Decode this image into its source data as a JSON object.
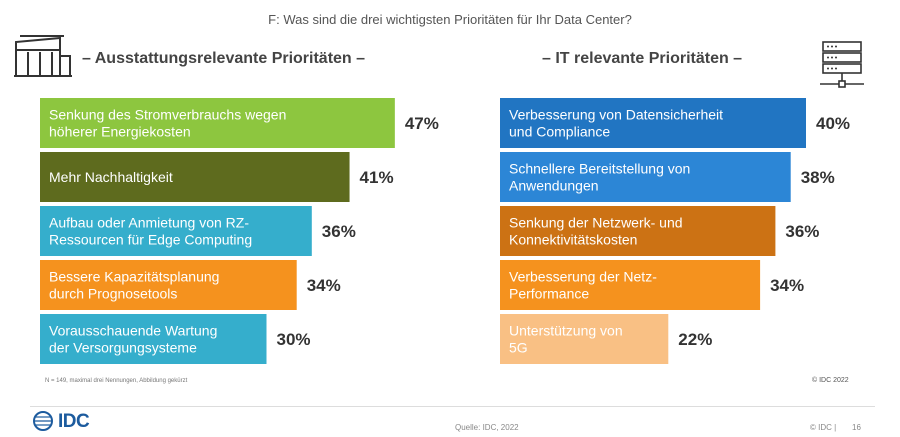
{
  "question": "F: Was sind die drei wichtigsten Prioritäten für Ihr Data Center?",
  "chart_data": [
    {
      "type": "bar",
      "orientation": "horizontal",
      "title": "– Ausstattungsrelevante Prioritäten –",
      "icon": "building-icon",
      "unit": "%",
      "categories": [
        [
          "Senkung des Stromverbrauchs wegen",
          "höherer Energiekosten"
        ],
        [
          "Mehr Nachhaltigkeit"
        ],
        [
          "Aufbau oder Anmietung von RZ-",
          "Ressourcen für Edge Computing"
        ],
        [
          "Bessere Kapazitätsplanung",
          "durch Prognosetools"
        ],
        [
          "Vorausschauende Wartung",
          "der Versorgungsysteme"
        ]
      ],
      "values": [
        47,
        41,
        36,
        34,
        30
      ],
      "value_labels": [
        "47%",
        "41%",
        "36%",
        "34%",
        "30%"
      ],
      "colors": [
        "#8dc63f",
        "#5e6b1e",
        "#35aecc",
        "#f5921e",
        "#35aecc"
      ]
    },
    {
      "type": "bar",
      "orientation": "horizontal",
      "title": "– IT relevante Prioritäten –",
      "icon": "server-icon",
      "unit": "%",
      "categories": [
        [
          "Verbesserung von Datensicherheit",
          "und Compliance"
        ],
        [
          "Schnellere Bereitstellung von",
          "Anwendungen"
        ],
        [
          "Senkung der Netzwerk- und",
          "Konnektivitätskosten"
        ],
        [
          "Verbesserung der Netz-",
          "Performance"
        ],
        [
          "Unterstützung von",
          "5G"
        ]
      ],
      "values": [
        40,
        38,
        36,
        34,
        22
      ],
      "value_labels": [
        "40%",
        "38%",
        "36%",
        "34%",
        "22%"
      ],
      "colors": [
        "#2175c2",
        "#2c86d6",
        "#cc7214",
        "#f5921e",
        "#f9c084"
      ]
    }
  ],
  "note": "N = 149, maximal drei Nennungen, Abbildung gekürzt",
  "copyright": "© IDC 2022",
  "footer": {
    "logo_text": "IDC",
    "source": "Quelle: IDC, 2022",
    "copyright": "© IDC |",
    "page": "16"
  }
}
